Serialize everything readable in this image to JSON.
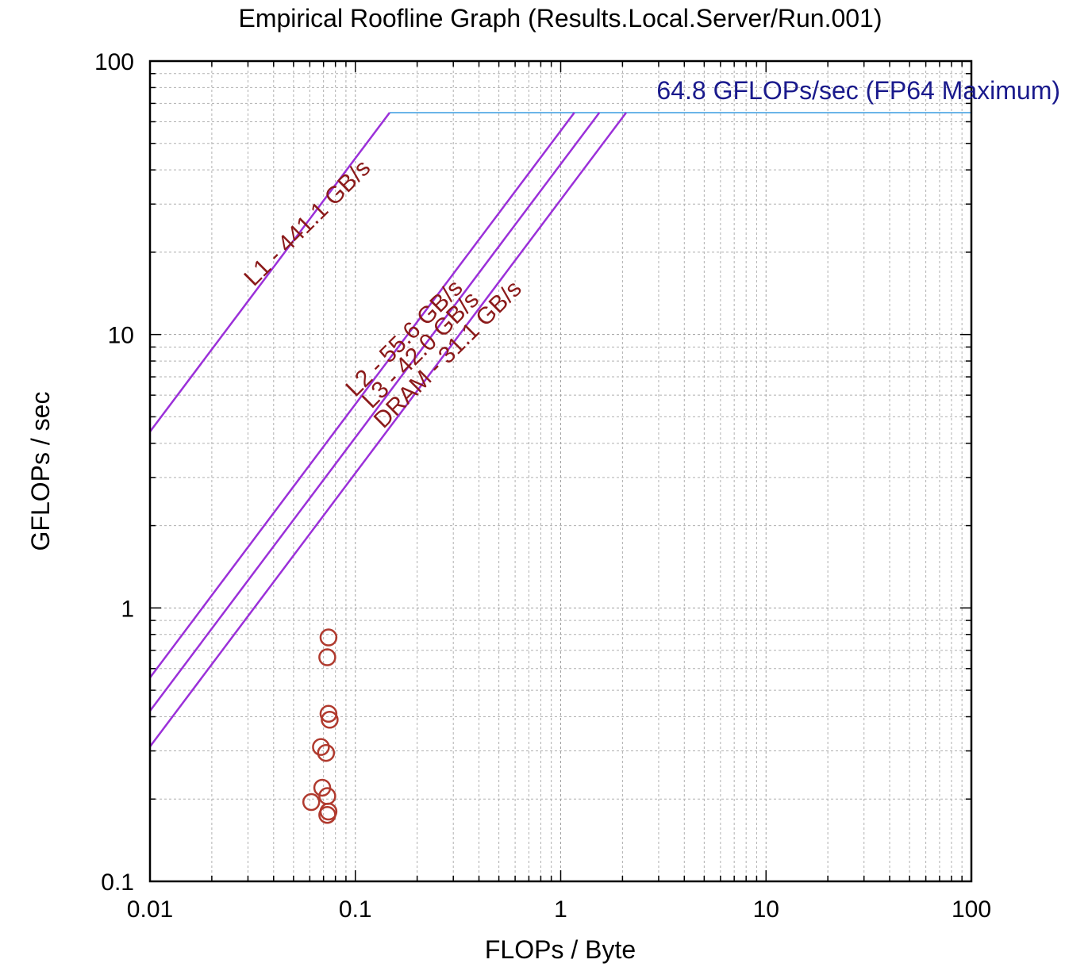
{
  "chart_data": {
    "type": "scatter",
    "title": "Empirical Roofline Graph (Results.Local.Server/Run.001)",
    "xlabel": "FLOPs / Byte",
    "ylabel": "GFLOPs / sec",
    "x_scale": "log",
    "y_scale": "log",
    "xlim": [
      0.01,
      100
    ],
    "ylim": [
      0.1,
      100
    ],
    "grid": true,
    "x_ticks": [
      {
        "value": 0.01,
        "label": "0.01"
      },
      {
        "value": 0.1,
        "label": "0.1"
      },
      {
        "value": 1,
        "label": "1"
      },
      {
        "value": 10,
        "label": "10"
      },
      {
        "value": 100,
        "label": "100"
      }
    ],
    "y_ticks": [
      {
        "value": 0.1,
        "label": "0.1"
      },
      {
        "value": 1,
        "label": "1"
      },
      {
        "value": 10,
        "label": "10"
      },
      {
        "value": 100,
        "label": "100"
      }
    ],
    "peak": {
      "label": "64.8 GFLOPs/sec (FP64 Maximum)",
      "gflops": 64.8,
      "color": "#6bb5e8",
      "label_color": "#1a1a8c"
    },
    "rooflines": [
      {
        "label": "L1 - 441.1 GB/s",
        "bandwidth": 441.1
      },
      {
        "label": "L2 - 55.6 GB/s",
        "bandwidth": 55.6
      },
      {
        "label": "L3 - 42.0 GB/s",
        "bandwidth": 42.0
      },
      {
        "label": "DRAM - 31.1 GB/s",
        "bandwidth": 31.1
      }
    ],
    "roofline_color": "#9b30d9",
    "roofline_label_color": "#8b1a1a",
    "points_color": "#b03a2e",
    "points": [
      {
        "x": 0.074,
        "y": 0.78
      },
      {
        "x": 0.073,
        "y": 0.66
      },
      {
        "x": 0.074,
        "y": 0.41
      },
      {
        "x": 0.075,
        "y": 0.39
      },
      {
        "x": 0.068,
        "y": 0.31
      },
      {
        "x": 0.072,
        "y": 0.295
      },
      {
        "x": 0.069,
        "y": 0.22
      },
      {
        "x": 0.073,
        "y": 0.205
      },
      {
        "x": 0.061,
        "y": 0.195
      },
      {
        "x": 0.074,
        "y": 0.18
      },
      {
        "x": 0.073,
        "y": 0.175
      }
    ]
  }
}
